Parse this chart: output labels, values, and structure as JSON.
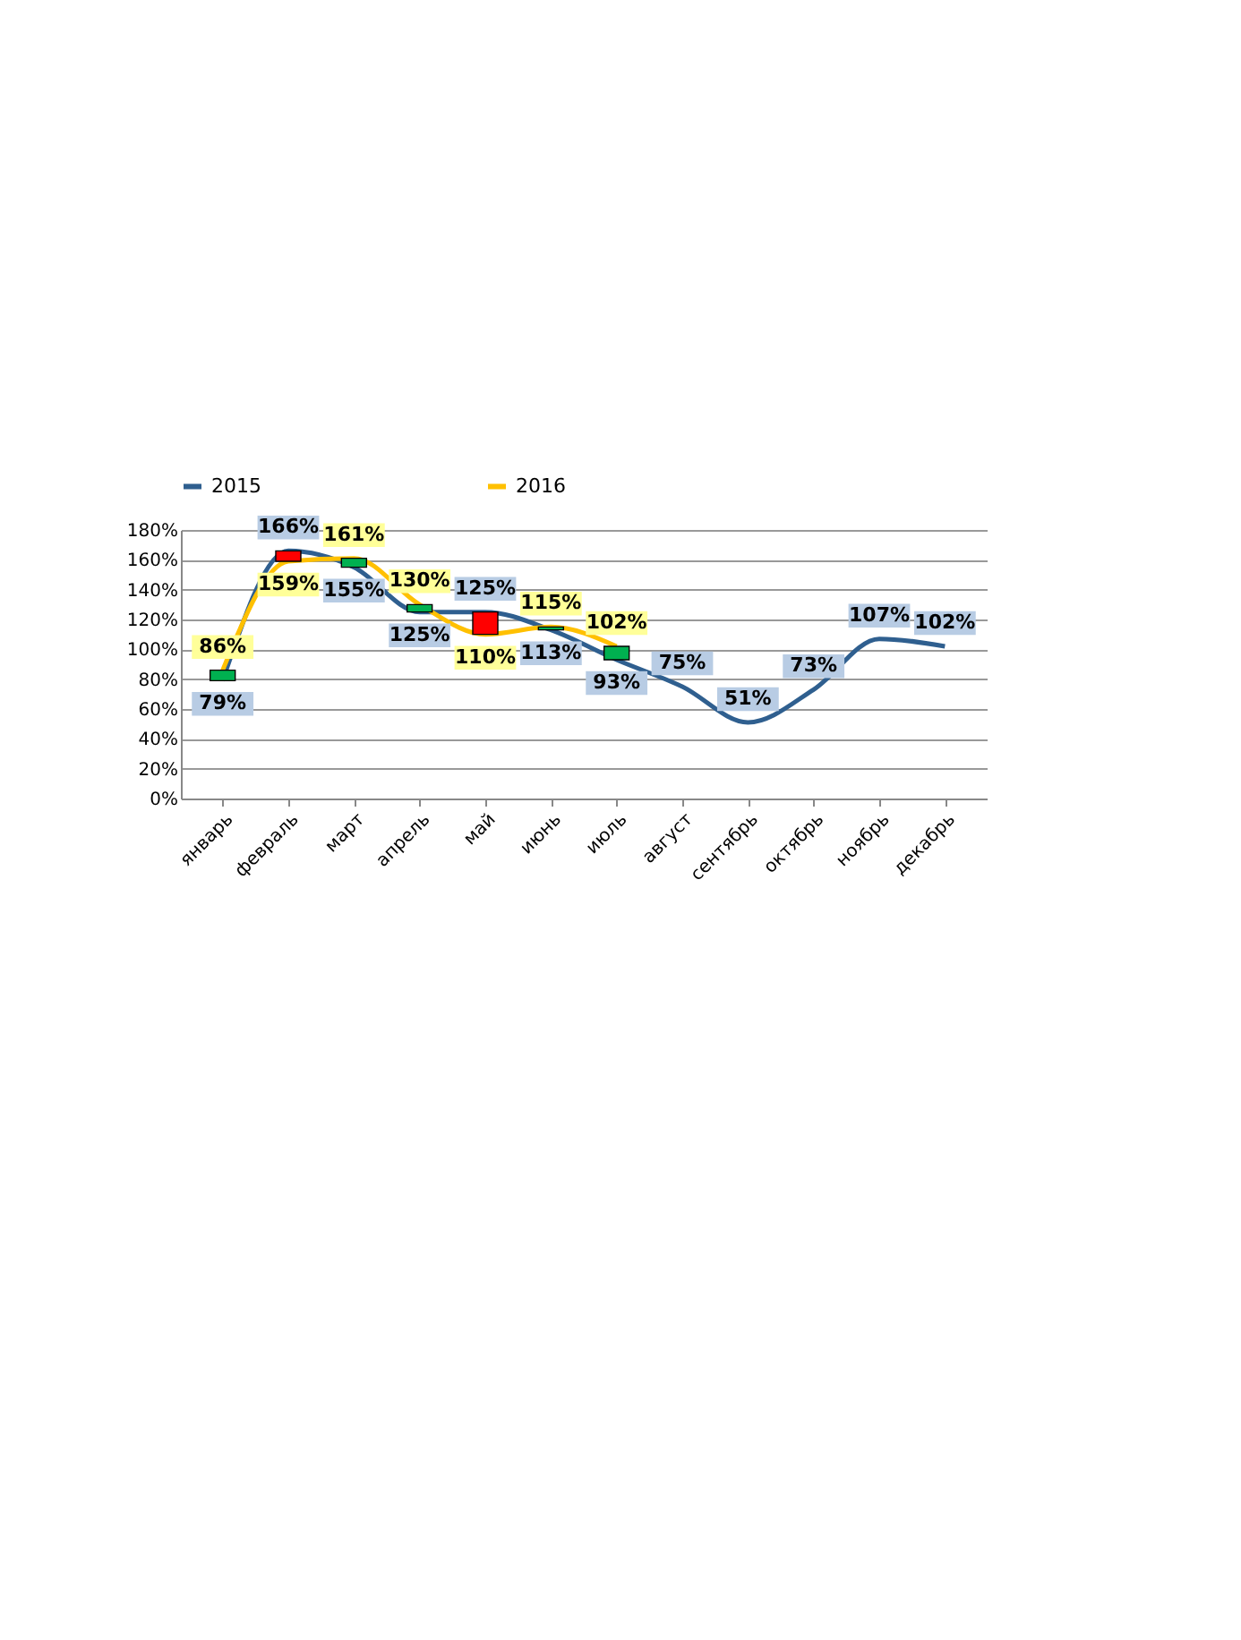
{
  "chart_data": {
    "type": "line",
    "categories": [
      "январь",
      "февраль",
      "март",
      "апрель",
      "май",
      "июнь",
      "июль",
      "август",
      "сентябрь",
      "октябрь",
      "ноябрь",
      "декабрь"
    ],
    "series": [
      {
        "name": "2015",
        "color": "#2f5f8f",
        "values": [
          79,
          166,
          155,
          125,
          125,
          113,
          93,
          75,
          51,
          73,
          107,
          102
        ],
        "value_labels": [
          "79%",
          "166%",
          "155%",
          "125%",
          "125%",
          "113%",
          "93%",
          "75%",
          "51%",
          "73%",
          "107%",
          "102%"
        ]
      },
      {
        "name": "2016",
        "color": "#ffc000",
        "values": [
          86,
          159,
          161,
          130,
          110,
          115,
          102,
          null,
          null,
          null,
          null,
          null
        ],
        "value_labels": [
          "86%",
          "159%",
          "161%",
          "130%",
          "110%",
          "115%",
          "102%",
          null,
          null,
          null,
          null,
          null
        ]
      },
      {
        "type": "bar",
        "base": [
          79,
          166,
          155,
          125,
          125,
          113,
          93,
          null,
          null,
          null,
          null,
          null
        ],
        "values": [
          7,
          -7,
          6,
          5,
          -15,
          2,
          9,
          null,
          null,
          null,
          null,
          null
        ],
        "colors": [
          "#00b050",
          "#ff0000",
          "#00b050",
          "#00b050",
          "#ff0000",
          "#00b050",
          "#00b050",
          null,
          null,
          null,
          null,
          null
        ]
      }
    ],
    "ylim": [
      0,
      180
    ],
    "yticks": [
      {
        "value": 0,
        "label": "0%"
      },
      {
        "value": 20,
        "label": "20%"
      },
      {
        "value": 40,
        "label": "40%"
      },
      {
        "value": 60,
        "label": "60%"
      },
      {
        "value": 80,
        "label": "80%"
      },
      {
        "value": 100,
        "label": "100%"
      },
      {
        "value": 120,
        "label": "120%"
      },
      {
        "value": 140,
        "label": "140%"
      },
      {
        "value": 160,
        "label": "160%"
      },
      {
        "value": 180,
        "label": "180%"
      }
    ],
    "grid": "y",
    "legend": "top"
  }
}
